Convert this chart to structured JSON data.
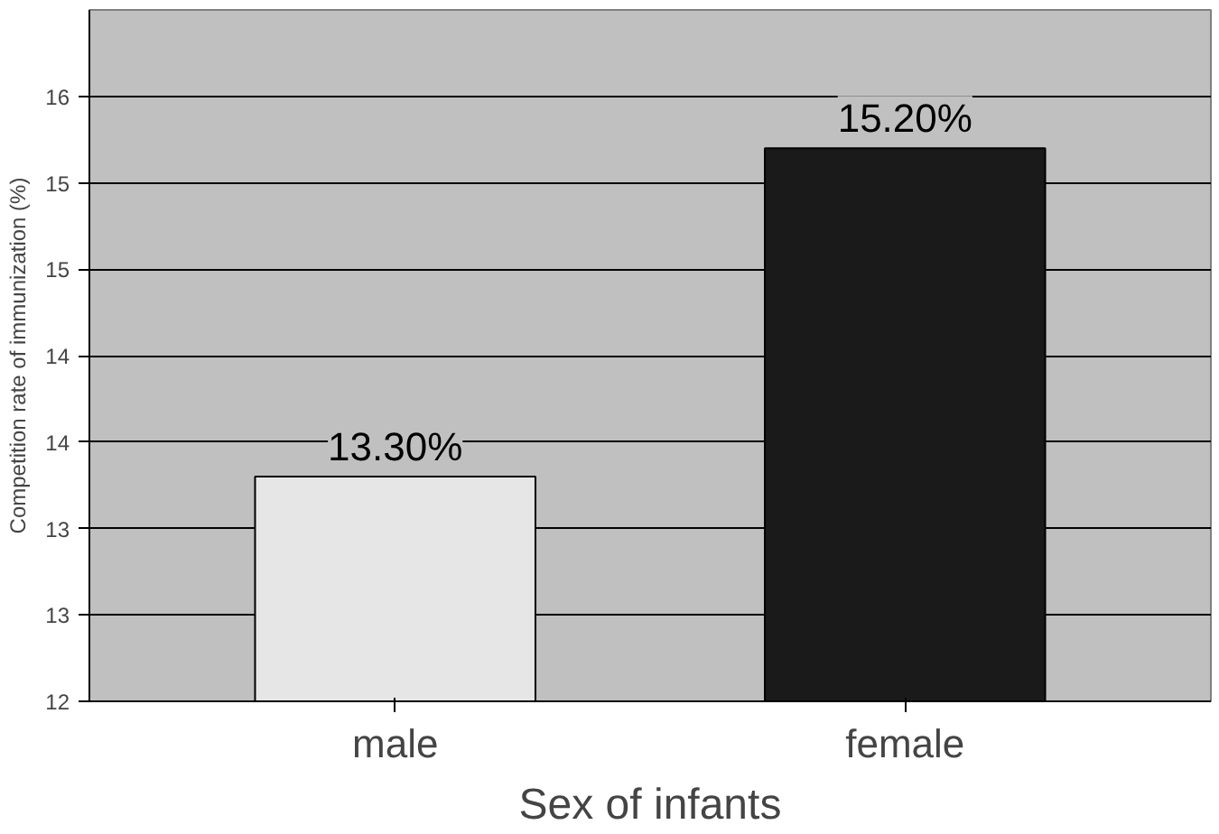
{
  "chart_data": {
    "type": "bar",
    "xlabel": "Sex of infants",
    "ylabel": "Competition rate of immunization (%)",
    "categories": [
      "male",
      "female"
    ],
    "values": [
      13.3,
      15.2
    ],
    "colors": [
      "#e6e6e6",
      "#1a1a1a"
    ],
    "value_labels": [
      "13.30%",
      "15.20%"
    ],
    "ylim": [
      12,
      16
    ],
    "yticks": [
      12,
      {
        "value": 12.5,
        "label": "13"
      },
      {
        "value": 13,
        "label": "13"
      },
      {
        "value": 13.5,
        "label": "14"
      },
      {
        "value": 14,
        "label": "14"
      },
      {
        "value": 14.5,
        "label": "15"
      },
      {
        "value": 15,
        "label": "15"
      },
      {
        "value": 15.5,
        "label": "16"
      }
    ],
    "grid": "y"
  }
}
